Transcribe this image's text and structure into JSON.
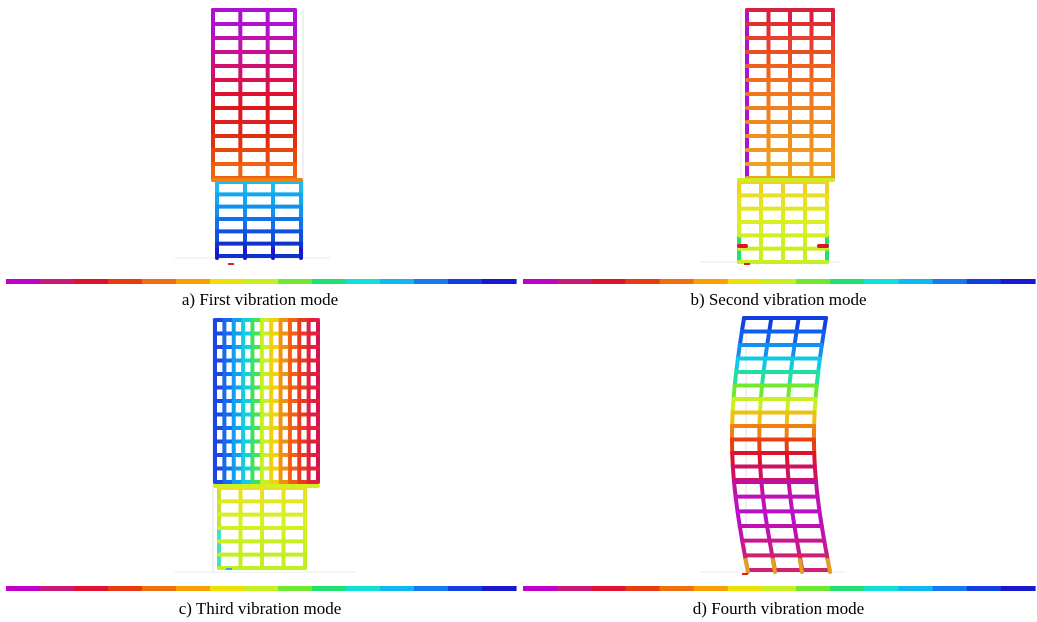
{
  "colors": {
    "scale": [
      "#c000c8",
      "#c81878",
      "#e01030",
      "#e83a10",
      "#f07010",
      "#f8a000",
      "#f0e000",
      "#c8f020",
      "#70e830",
      "#20e070",
      "#10e0d8",
      "#10b8f0",
      "#1878f0",
      "#1040e0",
      "#1818d0"
    ],
    "mode1_upper": [
      "#b010d0",
      "#b010d0",
      "#c010b0",
      "#c81090",
      "#d01070",
      "#d81050",
      "#e01030",
      "#e01818",
      "#e02020",
      "#e03010",
      "#e84810",
      "#f06010"
    ],
    "mode1_lower": [
      "#20b8f0",
      "#10a8f0",
      "#1090f0",
      "#1070f0",
      "#1050e0",
      "#1030d0"
    ],
    "mode2_upper": [
      "#d82040",
      "#e03030",
      "#e84030",
      "#e85020",
      "#f06020",
      "#f07020",
      "#f07820",
      "#f08020",
      "#f08820",
      "#f09020",
      "#f09820",
      "#f0a020"
    ],
    "mode2_lower": [
      "#f0d020",
      "#e8e020",
      "#e0e820",
      "#d8f020",
      "#d0f020",
      "#c8f020"
    ],
    "mode3_columns": [
      "#1848e8",
      "#1868f0",
      "#10a0f0",
      "#10d0e0",
      "#40e060",
      "#c8f020",
      "#f0d010",
      "#f09010",
      "#f06010",
      "#e83a20",
      "#e02040",
      "#d81050"
    ],
    "mode3_lower": [
      "#e8e020",
      "#e0e820",
      "#d8f020",
      "#d0f020",
      "#c8f020",
      "#c0f020"
    ],
    "mode4_upper": [
      "#1040e0",
      "#1060f0",
      "#1090f0",
      "#10c8e8",
      "#20e0a0",
      "#70e830",
      "#c8f020",
      "#f0c010",
      "#f08010",
      "#e84010",
      "#e01030",
      "#d01060"
    ],
    "mode4_lower": [
      "#c010a0",
      "#c010b8",
      "#b810c8",
      "#c010b0",
      "#c81890",
      "#d02070"
    ]
  },
  "panels": [
    {
      "caption": "a) First vibration mode"
    },
    {
      "caption": "b) Second vibration mode"
    },
    {
      "caption": "c) Third vibration mode"
    },
    {
      "caption": "d) Fourth vibration mode"
    }
  ]
}
